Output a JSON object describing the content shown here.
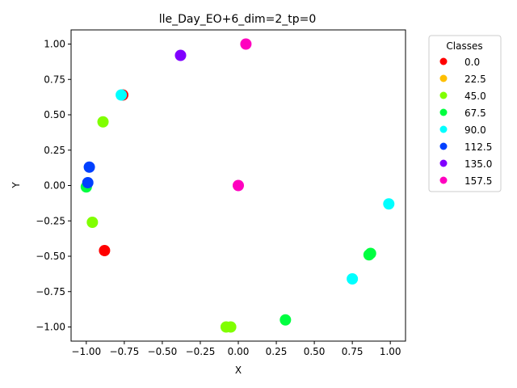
{
  "chart_data": {
    "type": "scatter",
    "title": "lle_Day_EO+6_dim=2_tp=0",
    "xlabel": "X",
    "ylabel": "Y",
    "xlim": [
      -1.1,
      1.1
    ],
    "ylim": [
      -1.1,
      1.1
    ],
    "x_ticks": [
      -1.0,
      -0.75,
      -0.5,
      -0.25,
      0.0,
      0.25,
      0.5,
      0.75,
      1.0
    ],
    "x_tick_labels": [
      "−1.00",
      "−0.75",
      "−0.50",
      "−0.25",
      "0.00",
      "0.25",
      "0.50",
      "0.75",
      "1.00"
    ],
    "y_ticks": [
      1.0,
      0.75,
      0.5,
      0.25,
      0.0,
      -0.25,
      -0.5,
      -0.75,
      -1.0
    ],
    "y_tick_labels": [
      "1.00",
      "0.75",
      "0.50",
      "0.25",
      "0.00",
      "−0.25",
      "−0.50",
      "−0.75",
      "−1.00"
    ],
    "grid": false,
    "legend": {
      "title": "Classes",
      "placement": "outside-right",
      "entries": [
        {
          "label": "0.0",
          "color": "#ff0000"
        },
        {
          "label": "22.5",
          "color": "#ffbf00"
        },
        {
          "label": "45.0",
          "color": "#80ff00"
        },
        {
          "label": "67.5",
          "color": "#00ff40"
        },
        {
          "label": "90.0",
          "color": "#00ffff"
        },
        {
          "label": "112.5",
          "color": "#0040ff"
        },
        {
          "label": "135.0",
          "color": "#8000ff"
        },
        {
          "label": "157.5",
          "color": "#ff00bf"
        }
      ]
    },
    "points": [
      {
        "x": -0.76,
        "y": 0.64,
        "class": "0.0"
      },
      {
        "x": -0.88,
        "y": -0.46,
        "class": "0.0"
      },
      {
        "x": -0.89,
        "y": 0.45,
        "class": "45.0"
      },
      {
        "x": -0.96,
        "y": -0.26,
        "class": "45.0"
      },
      {
        "x": -0.08,
        "y": -1.0,
        "class": "45.0"
      },
      {
        "x": -0.05,
        "y": -1.0,
        "class": "45.0"
      },
      {
        "x": -1.0,
        "y": -0.01,
        "class": "67.5"
      },
      {
        "x": 0.31,
        "y": -0.95,
        "class": "67.5"
      },
      {
        "x": 0.86,
        "y": -0.49,
        "class": "67.5"
      },
      {
        "x": 0.87,
        "y": -0.48,
        "class": "67.5"
      },
      {
        "x": -0.77,
        "y": 0.64,
        "class": "90.0"
      },
      {
        "x": 0.75,
        "y": -0.66,
        "class": "90.0"
      },
      {
        "x": 0.99,
        "y": -0.13,
        "class": "90.0"
      },
      {
        "x": -0.98,
        "y": 0.13,
        "class": "112.5"
      },
      {
        "x": -0.99,
        "y": 0.02,
        "class": "112.5"
      },
      {
        "x": -0.38,
        "y": 0.92,
        "class": "135.0"
      },
      {
        "x": 0.05,
        "y": 1.0,
        "class": "157.5"
      },
      {
        "x": 0.0,
        "y": 0.0,
        "class": "157.5"
      }
    ]
  }
}
